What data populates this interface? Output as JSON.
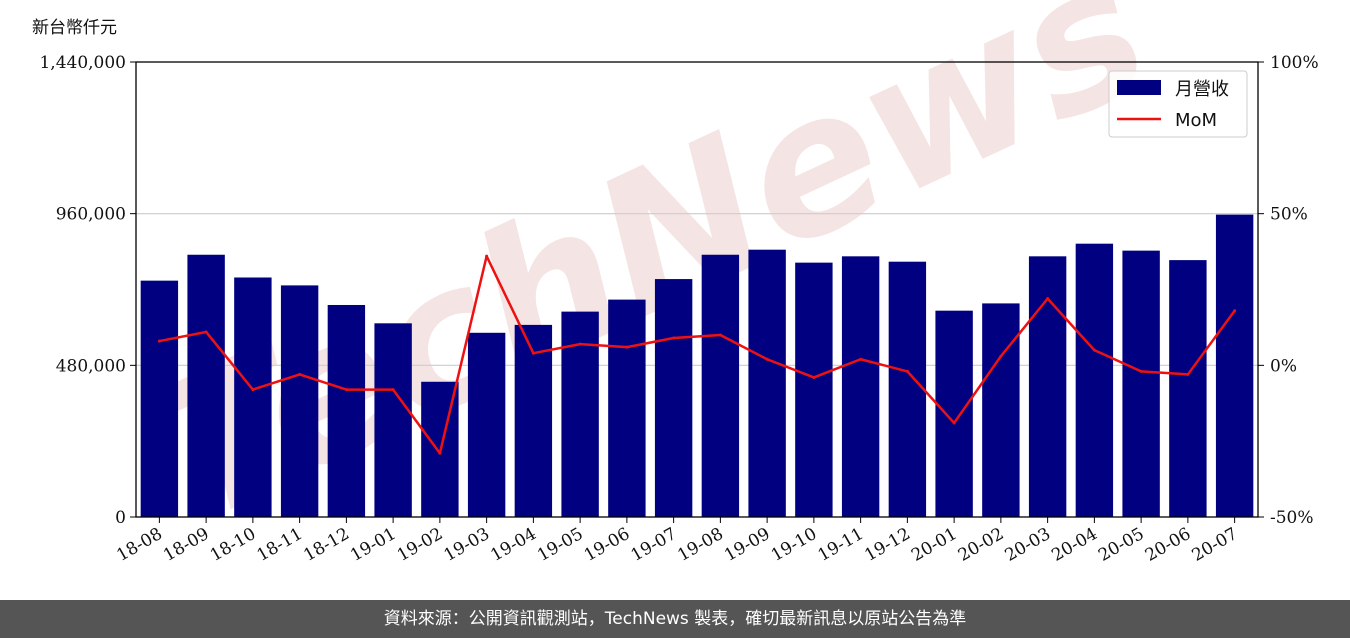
{
  "chart_data": {
    "type": "bar",
    "unit_label": "新台幣仟元",
    "categories": [
      "18-08",
      "18-09",
      "18-10",
      "18-11",
      "18-12",
      "19-01",
      "19-02",
      "19-03",
      "19-04",
      "19-05",
      "19-06",
      "19-07",
      "19-08",
      "19-09",
      "19-10",
      "19-11",
      "19-12",
      "20-01",
      "20-02",
      "20-03",
      "20-04",
      "20-05",
      "20-06",
      "20-07"
    ],
    "series": [
      {
        "name": "月營收",
        "type": "bar",
        "axis": "left",
        "color": "#000080",
        "values": [
          748000,
          830000,
          758000,
          733000,
          671000,
          613000,
          428000,
          583000,
          608000,
          650000,
          688000,
          753000,
          830000,
          846000,
          805000,
          825000,
          808000,
          653000,
          676000,
          825000,
          865000,
          843000,
          813000,
          957000
        ]
      },
      {
        "name": "MoM",
        "type": "line",
        "axis": "right",
        "color": "#ee1111",
        "values": [
          8,
          11,
          -8,
          -3,
          -8,
          -8,
          -29,
          36,
          4,
          7,
          6,
          9,
          10,
          2,
          -4,
          2,
          -2,
          -19,
          3,
          22,
          5,
          -2,
          -3,
          18
        ]
      }
    ],
    "y_left": {
      "range": [
        0,
        1440000
      ],
      "ticks": [
        "0",
        "480,000",
        "960,000",
        "1,440,000"
      ],
      "tick_values": [
        0,
        480000,
        960000,
        1440000
      ]
    },
    "y_right": {
      "range": [
        -50,
        100
      ],
      "ticks": [
        "-50%",
        "0%",
        "50%",
        "100%"
      ],
      "tick_values": [
        -50,
        0,
        50,
        100
      ]
    },
    "grid": "horizontal",
    "legend_position": "top-right"
  },
  "watermark": "TechNews",
  "footer": {
    "source_text": "資料來源：公開資訊觀測站，TechNews 製表，確切最新訊息以原站公告為準"
  }
}
